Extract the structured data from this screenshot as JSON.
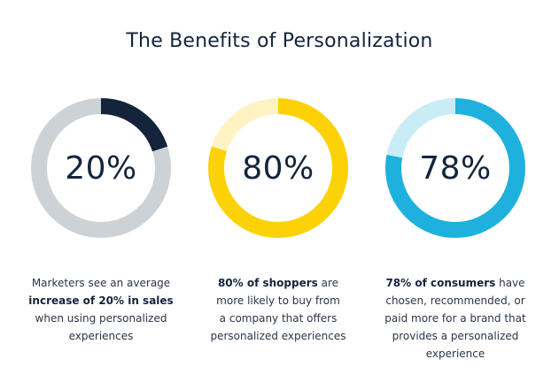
{
  "header": {
    "title": "The Benefits of Personalization"
  },
  "chart_data": [
    {
      "type": "pie",
      "label": "20%",
      "value": 20,
      "color": "#14243a",
      "track_color": "#cdd2d7",
      "caption": [
        {
          "segments": [
            {
              "text": "Marketers see an average",
              "bold": false
            }
          ]
        },
        {
          "segments": [
            {
              "text": "increase of 20% in sales",
              "bold": true
            }
          ]
        },
        {
          "segments": [
            {
              "text": "when using personalized",
              "bold": false
            }
          ]
        },
        {
          "segments": [
            {
              "text": "experiences",
              "bold": false
            }
          ]
        }
      ]
    },
    {
      "type": "pie",
      "label": "80%",
      "value": 80,
      "color": "#fcd207",
      "track_color": "#fff3c4",
      "caption": [
        {
          "segments": [
            {
              "text": "80% of shoppers",
              "bold": true
            },
            {
              "text": " are",
              "bold": false
            }
          ]
        },
        {
          "segments": [
            {
              "text": "more likely to buy from",
              "bold": false
            }
          ]
        },
        {
          "segments": [
            {
              "text": "a company that offers",
              "bold": false
            }
          ]
        },
        {
          "segments": [
            {
              "text": "personalized experiences",
              "bold": false
            }
          ]
        }
      ]
    },
    {
      "type": "pie",
      "label": "78%",
      "value": 78,
      "color": "#1eb1de",
      "track_color": "#c9ecf7",
      "caption": [
        {
          "segments": [
            {
              "text": "78% of consumers",
              "bold": true
            },
            {
              "text": " have",
              "bold": false
            }
          ]
        },
        {
          "segments": [
            {
              "text": "chosen, recommended, or",
              "bold": false
            }
          ]
        },
        {
          "segments": [
            {
              "text": "paid more for a brand that",
              "bold": false
            }
          ]
        },
        {
          "segments": [
            {
              "text": "provides a personalized",
              "bold": false
            }
          ]
        },
        {
          "segments": [
            {
              "text": "experience",
              "bold": false
            }
          ]
        }
      ]
    }
  ]
}
